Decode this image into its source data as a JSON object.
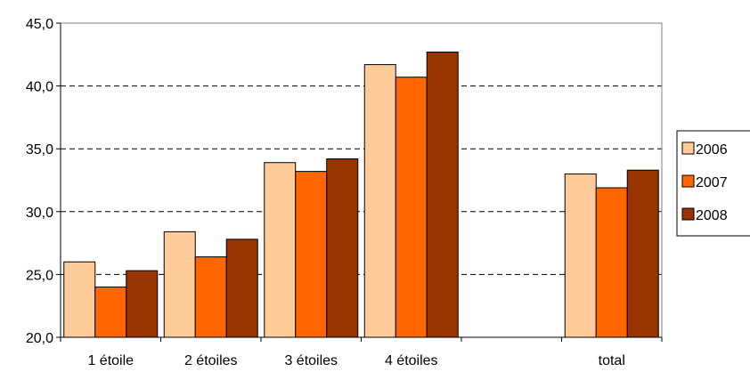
{
  "chart_data": {
    "type": "bar",
    "categories": [
      "1 étoile",
      "2 étoiles",
      "3 étoiles",
      "4 étoiles",
      "",
      "total"
    ],
    "series": [
      {
        "name": "2006",
        "color": "#FFCC99",
        "values": [
          26.0,
          28.4,
          33.9,
          41.7,
          null,
          33.0
        ]
      },
      {
        "name": "2007",
        "color": "#FF6600",
        "values": [
          24.0,
          26.4,
          33.2,
          40.7,
          null,
          31.9
        ]
      },
      {
        "name": "2008",
        "color": "#993300",
        "values": [
          25.3,
          27.8,
          34.2,
          42.7,
          null,
          33.3
        ]
      }
    ],
    "yticks": [
      "20,0",
      "25,0",
      "30,0",
      "35,0",
      "40,0",
      "45,0"
    ],
    "ylim": [
      20,
      45
    ],
    "grid": "horizontal dashed",
    "legend_position": "right"
  }
}
